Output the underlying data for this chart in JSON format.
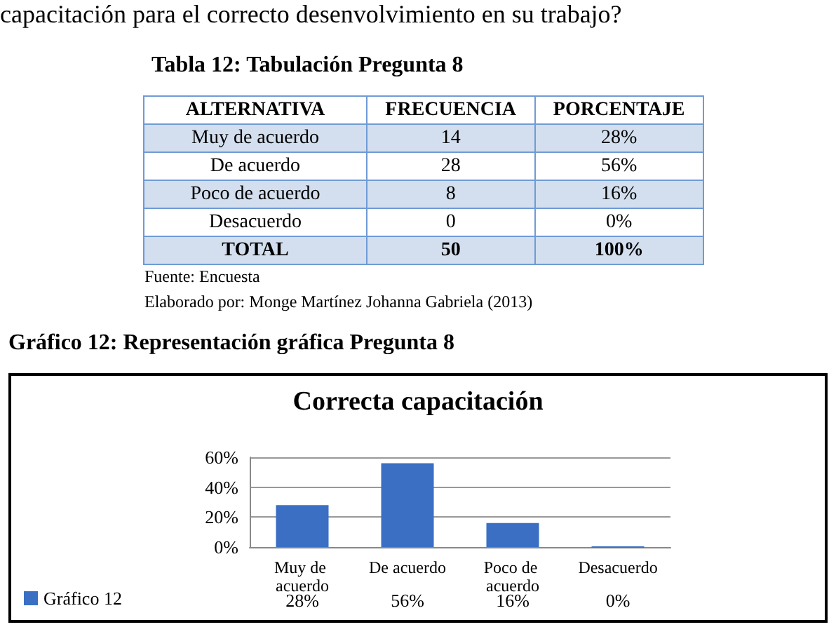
{
  "chart_data": [
    {
      "type": "other",
      "title": "Tabla 12: Tabulación Pregunta 8",
      "xlabel": "ALTERNATIVA",
      "categories": [
        "Muy de acuerdo",
        "De acuerdo",
        "Poco de acuerdo",
        "Desacuerdo",
        "TOTAL"
      ],
      "series": [
        {
          "name": "FRECUENCIA",
          "values": [
            14,
            28,
            8,
            0,
            50
          ],
          "value_labels": [
            "14",
            "28",
            "8",
            "0",
            "50"
          ]
        },
        {
          "name": "PORCENTAJE",
          "values": [
            28,
            56,
            16,
            0,
            100
          ],
          "value_labels": [
            "28%",
            "56%",
            "16%",
            "0%",
            "100%"
          ]
        }
      ],
      "annotations": [
        "capacitación para el correcto desenvolvimiento en su trabajo?",
        "Fuente: Encuesta",
        "Elaborado por: Monge Martínez Johanna Gabriela (2013)"
      ]
    },
    {
      "type": "bar",
      "title": "Correcta capacitación",
      "annotations": [
        "Gráfico 12: Representación gráfica Pregunta 8"
      ],
      "categories": [
        "Muy de acuerdo",
        "De acuerdo",
        "Poco de acuerdo",
        "Desacuerdo"
      ],
      "series": [
        {
          "name": "Gráfico 12",
          "color": "#3a6fc4",
          "values": [
            28,
            56,
            16,
            0
          ],
          "value_labels": [
            "28%",
            "56%",
            "16%",
            "0%"
          ]
        }
      ],
      "ylim": [
        0,
        60
      ],
      "yticks": [
        {
          "value": 0,
          "label": "0%"
        },
        {
          "value": 20,
          "label": "20%"
        },
        {
          "value": 40,
          "label": "40%"
        },
        {
          "value": 60,
          "label": "60%"
        }
      ],
      "grid": "y",
      "legend": "bottom left"
    }
  ]
}
